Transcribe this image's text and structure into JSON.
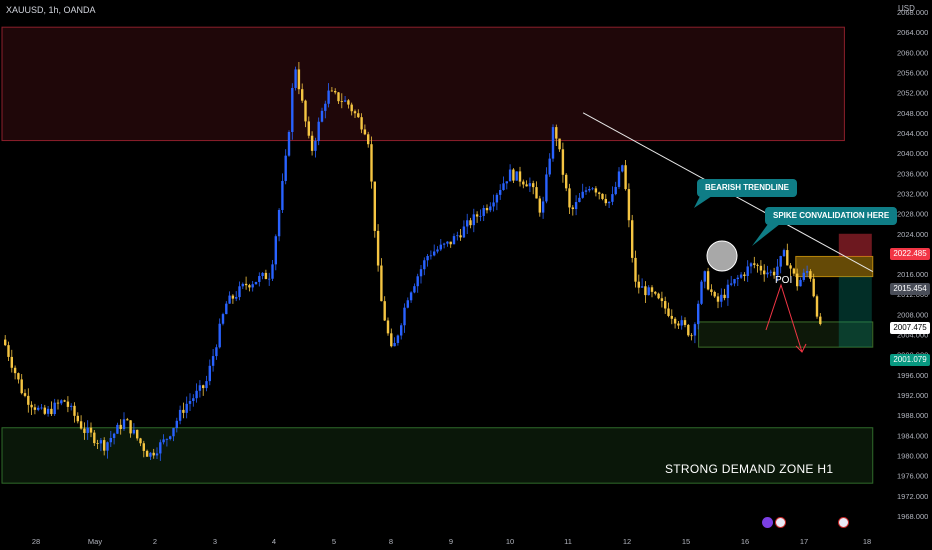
{
  "header": {
    "symbol": "XAUUSD, 1h, OANDA",
    "currency": "USD"
  },
  "chart_data": {
    "type": "candlestick",
    "symbol": "XAUUSD",
    "timeframe": "1h",
    "ylim": [
      1966,
      2070
    ],
    "y_ticks": [
      1968,
      1972,
      1976,
      1980,
      1984,
      1988,
      1992,
      1996,
      2000,
      2004,
      2008,
      2012,
      2016,
      2020,
      2024,
      2028,
      2032,
      2036,
      2040,
      2044,
      2048,
      2052,
      2056,
      2060,
      2064,
      2068
    ],
    "x_labels": [
      "28",
      "May",
      "2",
      "3",
      "4",
      "5",
      "8",
      "9",
      "10",
      "11",
      "12",
      "15",
      "16",
      "17",
      "18"
    ],
    "price_path": [
      {
        "t": 0.0,
        "p": 2003
      },
      {
        "t": 0.5,
        "p": 1992
      },
      {
        "t": 1.0,
        "p": 1988
      },
      {
        "t": 1.5,
        "p": 1991
      },
      {
        "t": 2.0,
        "p": 1985
      },
      {
        "t": 2.5,
        "p": 1982
      },
      {
        "t": 3.0,
        "p": 1987
      },
      {
        "t": 3.6,
        "p": 1980
      },
      {
        "t": 4.0,
        "p": 1983
      },
      {
        "t": 4.5,
        "p": 1990
      },
      {
        "t": 5.0,
        "p": 1994
      },
      {
        "t": 5.5,
        "p": 2010
      },
      {
        "t": 6.0,
        "p": 2014
      },
      {
        "t": 6.6,
        "p": 2016
      },
      {
        "t": 7.0,
        "p": 2040
      },
      {
        "t": 7.2,
        "p": 2058
      },
      {
        "t": 7.6,
        "p": 2040
      },
      {
        "t": 8.0,
        "p": 2052
      },
      {
        "t": 8.5,
        "p": 2050
      },
      {
        "t": 9.0,
        "p": 2044
      },
      {
        "t": 9.3,
        "p": 2012
      },
      {
        "t": 9.6,
        "p": 2000
      },
      {
        "t": 10.0,
        "p": 2012
      },
      {
        "t": 10.5,
        "p": 2020
      },
      {
        "t": 11.0,
        "p": 2022
      },
      {
        "t": 11.5,
        "p": 2026
      },
      {
        "t": 12.0,
        "p": 2030
      },
      {
        "t": 12.5,
        "p": 2036
      },
      {
        "t": 13.0,
        "p": 2034
      },
      {
        "t": 13.3,
        "p": 2028
      },
      {
        "t": 13.6,
        "p": 2046
      },
      {
        "t": 14.0,
        "p": 2028
      },
      {
        "t": 14.5,
        "p": 2034
      },
      {
        "t": 15.0,
        "p": 2030
      },
      {
        "t": 15.3,
        "p": 2038
      },
      {
        "t": 15.6,
        "p": 2014
      },
      {
        "t": 16.0,
        "p": 2012
      },
      {
        "t": 16.5,
        "p": 2008
      },
      {
        "t": 17.0,
        "p": 2004
      },
      {
        "t": 17.3,
        "p": 2016
      },
      {
        "t": 17.6,
        "p": 2010
      },
      {
        "t": 18.0,
        "p": 2014
      },
      {
        "t": 18.5,
        "p": 2018
      },
      {
        "t": 19.0,
        "p": 2016
      },
      {
        "t": 19.3,
        "p": 2020
      },
      {
        "t": 19.6,
        "p": 2014
      },
      {
        "t": 19.9,
        "p": 2017
      },
      {
        "t": 20.2,
        "p": 2004
      }
    ],
    "zones": [
      {
        "kind": "supply",
        "from": 2042.5,
        "to": 2065,
        "t_start": 0,
        "t_end": 20.8,
        "color": "#8c1f2b"
      },
      {
        "kind": "demand",
        "label": "STRONG DEMAND ZONE H1",
        "from": 1974.5,
        "to": 1985.5,
        "t_start": 0,
        "t_end": 21.5,
        "color": "#2f6b2a"
      },
      {
        "kind": "poi",
        "label": "POI",
        "from": 2015.5,
        "to": 2019.5,
        "t_start": 19.6,
        "t_end": 21.5,
        "color": "#b8860b"
      },
      {
        "kind": "target",
        "from": 2001.5,
        "to": 2006.5,
        "t_start": 17.2,
        "t_end": 21.5,
        "color": "#3c6e2a"
      }
    ],
    "trendline": {
      "label": "BEARISH TRENDLINE",
      "from": {
        "t": 14.2,
        "p": 2048
      },
      "to": {
        "t": 21.5,
        "p": 2016.5
      }
    },
    "annotations": [
      {
        "text": "BEARISH TRENDLINE"
      },
      {
        "text": "SPIKE CONVALIDATION HERE"
      }
    ],
    "price_tags": [
      {
        "value": "2022.485",
        "color": "#f23645"
      },
      {
        "value": "2015.454",
        "color": "#4a4e59"
      },
      {
        "value": "2007.475",
        "color": "#ffffff"
      },
      {
        "value": "2001.079",
        "color": "#089981"
      }
    ],
    "colors": {
      "bull": "#2962ff",
      "bear": "#f5c542",
      "background": "#000000",
      "trend": "#e8e8e8"
    }
  }
}
